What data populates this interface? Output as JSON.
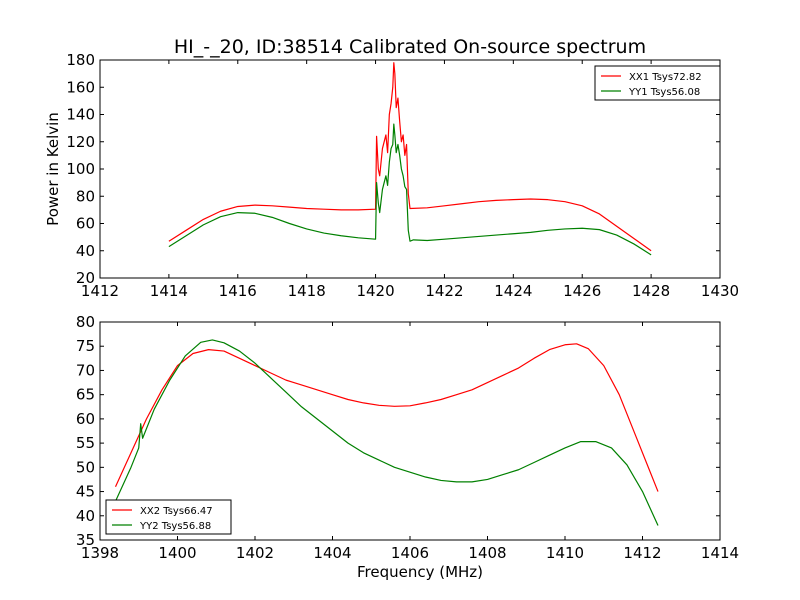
{
  "title": "HI_-_20, ID:38514 Calibrated On-source spectrum",
  "chart_data": [
    {
      "type": "line",
      "title": "HI_-_20, ID:38514 Calibrated On-source spectrum",
      "xlabel": "",
      "ylabel": "Power in Kelvin",
      "xlim": [
        1412,
        1430
      ],
      "ylim": [
        20,
        180
      ],
      "xticks": [
        1412,
        1414,
        1416,
        1418,
        1420,
        1422,
        1424,
        1426,
        1428,
        1430
      ],
      "yticks": [
        20,
        40,
        60,
        80,
        100,
        120,
        140,
        160,
        180
      ],
      "grid": false,
      "legend_position": "top-right",
      "series": [
        {
          "name": "XX1 Tsys72.82",
          "color": "#ff0000",
          "points": [
            [
              1414.0,
              47
            ],
            [
              1414.5,
              55
            ],
            [
              1415.0,
              63
            ],
            [
              1415.5,
              69
            ],
            [
              1416.0,
              72.5
            ],
            [
              1416.5,
              73.5
            ],
            [
              1417.0,
              73
            ],
            [
              1417.5,
              72
            ],
            [
              1418.0,
              71
            ],
            [
              1418.5,
              70.5
            ],
            [
              1419.0,
              70
            ],
            [
              1419.5,
              70
            ],
            [
              1420.0,
              70.5
            ],
            [
              1420.03,
              124
            ],
            [
              1420.08,
              100
            ],
            [
              1420.12,
              95
            ],
            [
              1420.2,
              115
            ],
            [
              1420.3,
              125
            ],
            [
              1420.35,
              112
            ],
            [
              1420.4,
              140
            ],
            [
              1420.45,
              148
            ],
            [
              1420.5,
              160
            ],
            [
              1420.53,
              178
            ],
            [
              1420.56,
              170
            ],
            [
              1420.6,
              145
            ],
            [
              1420.65,
              152
            ],
            [
              1420.7,
              135
            ],
            [
              1420.75,
              120
            ],
            [
              1420.8,
              125
            ],
            [
              1420.85,
              110
            ],
            [
              1420.9,
              118
            ],
            [
              1420.95,
              82
            ],
            [
              1421.0,
              71
            ],
            [
              1421.5,
              71.5
            ],
            [
              1422.0,
              73
            ],
            [
              1422.5,
              74.5
            ],
            [
              1423.0,
              76
            ],
            [
              1423.5,
              77
            ],
            [
              1424.0,
              77.5
            ],
            [
              1424.5,
              78
            ],
            [
              1425.0,
              77.5
            ],
            [
              1425.5,
              76
            ],
            [
              1426.0,
              73
            ],
            [
              1426.5,
              67
            ],
            [
              1427.0,
              58
            ],
            [
              1427.5,
              49
            ],
            [
              1428.0,
              40
            ]
          ]
        },
        {
          "name": "YY1 Tsys56.08",
          "color": "#008000",
          "points": [
            [
              1414.0,
              43
            ],
            [
              1414.5,
              51
            ],
            [
              1415.0,
              59
            ],
            [
              1415.5,
              65
            ],
            [
              1416.0,
              68
            ],
            [
              1416.5,
              67.5
            ],
            [
              1417.0,
              64.5
            ],
            [
              1417.5,
              60
            ],
            [
              1418.0,
              56
            ],
            [
              1418.5,
              53
            ],
            [
              1419.0,
              51
            ],
            [
              1419.5,
              49.5
            ],
            [
              1420.0,
              48.5
            ],
            [
              1420.03,
              90
            ],
            [
              1420.08,
              75
            ],
            [
              1420.12,
              68
            ],
            [
              1420.2,
              85
            ],
            [
              1420.3,
              95
            ],
            [
              1420.35,
              88
            ],
            [
              1420.4,
              105
            ],
            [
              1420.45,
              115
            ],
            [
              1420.5,
              118
            ],
            [
              1420.53,
              133
            ],
            [
              1420.56,
              125
            ],
            [
              1420.6,
              112
            ],
            [
              1420.65,
              118
            ],
            [
              1420.7,
              110
            ],
            [
              1420.75,
              100
            ],
            [
              1420.8,
              95
            ],
            [
              1420.85,
              87
            ],
            [
              1420.9,
              85
            ],
            [
              1420.95,
              55
            ],
            [
              1421.0,
              47
            ],
            [
              1421.1,
              48
            ],
            [
              1421.5,
              47.5
            ],
            [
              1422.0,
              48.5
            ],
            [
              1422.5,
              49.5
            ],
            [
              1423.0,
              50.5
            ],
            [
              1423.5,
              51.5
            ],
            [
              1424.0,
              52.5
            ],
            [
              1424.5,
              53.5
            ],
            [
              1425.0,
              55
            ],
            [
              1425.5,
              56
            ],
            [
              1426.0,
              56.5
            ],
            [
              1426.5,
              55.5
            ],
            [
              1427.0,
              51.5
            ],
            [
              1427.5,
              45
            ],
            [
              1428.0,
              37
            ]
          ]
        }
      ]
    },
    {
      "type": "line",
      "title": "",
      "xlabel": "Frequency (MHz)",
      "ylabel": "",
      "xlim": [
        1398,
        1414
      ],
      "ylim": [
        35,
        80
      ],
      "xticks": [
        1398,
        1400,
        1402,
        1404,
        1406,
        1408,
        1410,
        1412,
        1414
      ],
      "yticks": [
        35,
        40,
        45,
        50,
        55,
        60,
        65,
        70,
        75,
        80
      ],
      "grid": false,
      "legend_position": "bottom-left",
      "series": [
        {
          "name": "XX2 Tsys66.47",
          "color": "#ff0000",
          "points": [
            [
              1398.4,
              46
            ],
            [
              1398.8,
              53
            ],
            [
              1399.2,
              60
            ],
            [
              1399.6,
              66
            ],
            [
              1400.0,
              71
            ],
            [
              1400.4,
              73.5
            ],
            [
              1400.8,
              74.3
            ],
            [
              1401.2,
              74
            ],
            [
              1401.6,
              72.5
            ],
            [
              1402.0,
              71
            ],
            [
              1402.4,
              69.5
            ],
            [
              1402.8,
              68
            ],
            [
              1403.2,
              67
            ],
            [
              1403.6,
              66
            ],
            [
              1404.0,
              65
            ],
            [
              1404.4,
              64
            ],
            [
              1404.8,
              63.3
            ],
            [
              1405.2,
              62.8
            ],
            [
              1405.6,
              62.6
            ],
            [
              1406.0,
              62.7
            ],
            [
              1406.4,
              63.3
            ],
            [
              1406.8,
              64
            ],
            [
              1407.2,
              65
            ],
            [
              1407.6,
              66
            ],
            [
              1408.0,
              67.5
            ],
            [
              1408.4,
              69
            ],
            [
              1408.8,
              70.5
            ],
            [
              1409.2,
              72.5
            ],
            [
              1409.6,
              74.3
            ],
            [
              1410.0,
              75.3
            ],
            [
              1410.3,
              75.5
            ],
            [
              1410.6,
              74.5
            ],
            [
              1411.0,
              71
            ],
            [
              1411.4,
              65
            ],
            [
              1411.8,
              57
            ],
            [
              1412.1,
              51
            ],
            [
              1412.4,
              45
            ]
          ]
        },
        {
          "name": "YY2 Tsys56.88",
          "color": "#008000",
          "points": [
            [
              1398.4,
              43
            ],
            [
              1398.8,
              50
            ],
            [
              1399.0,
              54
            ],
            [
              1399.05,
              59
            ],
            [
              1399.1,
              56
            ],
            [
              1399.4,
              62
            ],
            [
              1399.8,
              68
            ],
            [
              1400.2,
              73
            ],
            [
              1400.6,
              75.8
            ],
            [
              1400.9,
              76.3
            ],
            [
              1401.2,
              75.7
            ],
            [
              1401.6,
              74
            ],
            [
              1402.0,
              71.5
            ],
            [
              1402.4,
              68.5
            ],
            [
              1402.8,
              65.5
            ],
            [
              1403.2,
              62.5
            ],
            [
              1403.6,
              60
            ],
            [
              1404.0,
              57.5
            ],
            [
              1404.4,
              55
            ],
            [
              1404.8,
              53
            ],
            [
              1405.2,
              51.5
            ],
            [
              1405.6,
              50
            ],
            [
              1406.0,
              49
            ],
            [
              1406.4,
              48
            ],
            [
              1406.8,
              47.3
            ],
            [
              1407.2,
              47
            ],
            [
              1407.6,
              47
            ],
            [
              1408.0,
              47.5
            ],
            [
              1408.4,
              48.5
            ],
            [
              1408.8,
              49.5
            ],
            [
              1409.2,
              51
            ],
            [
              1409.6,
              52.5
            ],
            [
              1410.0,
              54
            ],
            [
              1410.4,
              55.3
            ],
            [
              1410.8,
              55.3
            ],
            [
              1411.2,
              54
            ],
            [
              1411.6,
              50.5
            ],
            [
              1412.0,
              45
            ],
            [
              1412.4,
              38
            ]
          ]
        }
      ]
    }
  ]
}
